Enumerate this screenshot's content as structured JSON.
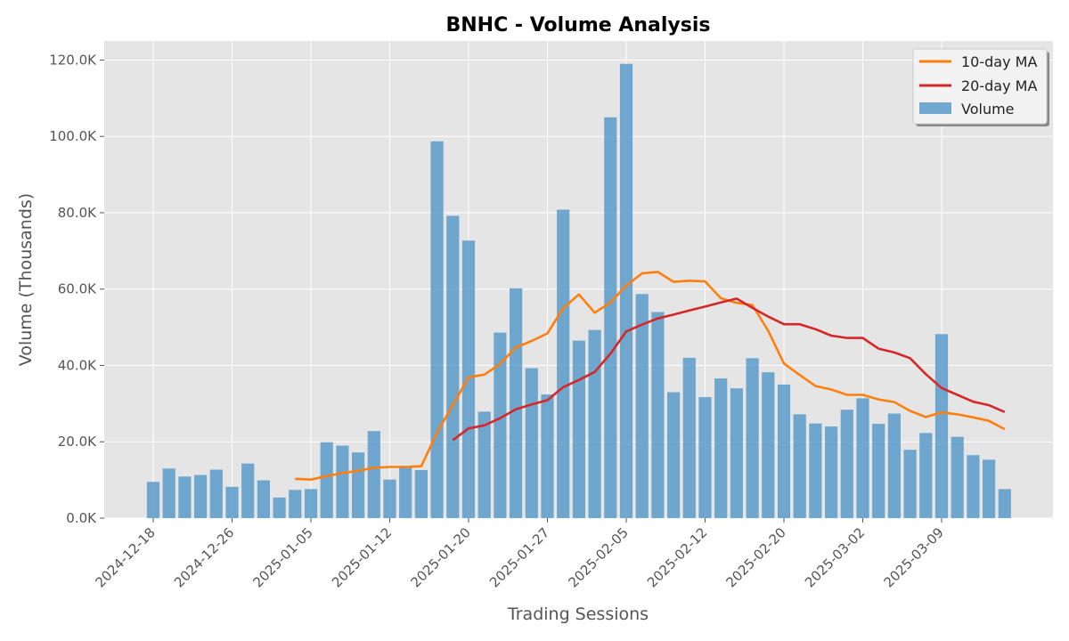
{
  "chart_data": {
    "type": "bar",
    "title": "BNHC - Volume Analysis",
    "xlabel": "Trading Sessions",
    "ylabel": "Volume (Thousands)",
    "ylim": [
      0,
      125
    ],
    "y_ticks": [
      0,
      20,
      40,
      60,
      80,
      100,
      120
    ],
    "y_tick_labels": [
      "0.0K",
      "20.0K",
      "40.0K",
      "60.0K",
      "80.0K",
      "100.0K",
      "120.0K"
    ],
    "grid": true,
    "legend_position": "top-right",
    "x_tick_labels": [
      {
        "label": "2024-12-18",
        "index": 0
      },
      {
        "label": "2024-12-26",
        "index": 5
      },
      {
        "label": "2025-01-05",
        "index": 10
      },
      {
        "label": "2025-01-12",
        "index": 15
      },
      {
        "label": "2025-01-20",
        "index": 20
      },
      {
        "label": "2025-01-27",
        "index": 25
      },
      {
        "label": "2025-02-05",
        "index": 30
      },
      {
        "label": "2025-02-12",
        "index": 35
      },
      {
        "label": "2025-02-20",
        "index": 40
      },
      {
        "label": "2025-03-02",
        "index": 45
      },
      {
        "label": "2025-03-09",
        "index": 50
      }
    ],
    "series": [
      {
        "name": "Volume",
        "kind": "bar",
        "color": "#5b9bc9",
        "values": [
          9.5,
          13.0,
          10.9,
          11.3,
          12.7,
          8.2,
          14.3,
          9.9,
          5.4,
          7.4,
          7.6,
          19.9,
          19.0,
          17.2,
          22.8,
          10.1,
          13.6,
          12.6,
          98.7,
          79.2,
          72.7,
          27.9,
          48.6,
          60.2,
          39.3,
          32.4,
          80.8,
          46.5,
          49.3,
          105.0,
          119.0,
          58.7,
          54.0,
          33.0,
          42.0,
          31.7,
          36.6,
          34.0,
          41.9,
          38.2,
          35.0,
          27.2,
          24.8,
          24.0,
          28.4,
          31.4,
          24.7,
          27.4,
          17.9,
          22.3,
          48.2,
          21.3,
          16.5,
          15.3,
          7.6
        ]
      },
      {
        "name": "10-day MA",
        "kind": "line",
        "color": "#ff7f0e",
        "start_index": 9,
        "values": [
          10.3,
          10.1,
          11.0,
          11.8,
          12.4,
          13.2,
          13.4,
          13.4,
          13.6,
          22.4,
          29.6,
          36.9,
          37.6,
          40.4,
          44.7,
          46.4,
          48.4,
          55.0,
          58.6,
          53.8,
          56.5,
          60.9,
          64.1,
          64.5,
          61.9,
          62.2,
          62.0,
          57.6,
          56.4,
          55.8,
          49.1,
          40.5,
          37.5,
          34.6,
          33.7,
          32.3,
          32.3,
          31.1,
          30.4,
          28.1,
          26.5,
          27.7,
          27.2,
          26.4,
          25.5,
          23.3
        ]
      },
      {
        "name": "20-day MA",
        "kind": "line",
        "color": "#d62728",
        "start_index": 19,
        "values": [
          20.4,
          23.5,
          24.3,
          26.2,
          28.5,
          29.8,
          30.9,
          34.3,
          36.2,
          38.3,
          43.1,
          48.9,
          50.7,
          52.3,
          53.3,
          54.4,
          55.4,
          56.5,
          57.5,
          55.1,
          52.8,
          50.8,
          50.8,
          49.5,
          47.8,
          47.2,
          47.2,
          44.4,
          43.4,
          41.9,
          37.7,
          34.1,
          32.3,
          30.5,
          29.6,
          27.8
        ]
      }
    ]
  }
}
